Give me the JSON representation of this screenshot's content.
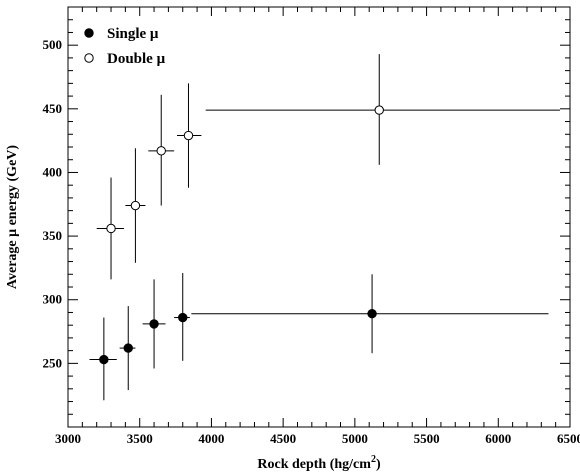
{
  "chart_data": {
    "type": "scatter",
    "xlabel": "Rock depth (hg/cm",
    "xlabel_sup": "2",
    "xlabel_close": ")",
    "ylabel": "Average μ energy (GeV)",
    "xlim": [
      3000,
      6500
    ],
    "ylim": [
      200,
      530
    ],
    "xticks": [
      3000,
      3500,
      4000,
      4500,
      5000,
      5500,
      6000,
      6500
    ],
    "yticks": [
      250,
      300,
      350,
      400,
      450,
      500
    ],
    "grid": false,
    "legend_position": "top-left",
    "series": [
      {
        "name": "Single μ",
        "marker": "filled-circle",
        "color": "#000000",
        "points": [
          {
            "x": 3250,
            "y": 253,
            "xerr": [
              3150,
              3340
            ],
            "yerr": [
              221,
              286
            ]
          },
          {
            "x": 3420,
            "y": 262,
            "xerr": [
              3360,
              3470
            ],
            "yerr": [
              229,
              295
            ]
          },
          {
            "x": 3600,
            "y": 281,
            "xerr": [
              3520,
              3680
            ],
            "yerr": [
              246,
              316
            ]
          },
          {
            "x": 3800,
            "y": 286,
            "xerr": [
              3740,
              3850
            ],
            "yerr": [
              252,
              321
            ]
          },
          {
            "x": 5120,
            "y": 289,
            "xerr": [
              3860,
              6350
            ],
            "yerr": [
              258,
              320
            ]
          }
        ]
      },
      {
        "name": "Double μ",
        "marker": "open-circle",
        "color": "#000000",
        "points": [
          {
            "x": 3300,
            "y": 356,
            "xerr": [
              3200,
              3390
            ],
            "yerr": [
              316,
              396
            ]
          },
          {
            "x": 3470,
            "y": 374,
            "xerr": [
              3400,
              3540
            ],
            "yerr": [
              329,
              419
            ]
          },
          {
            "x": 3650,
            "y": 417,
            "xerr": [
              3560,
              3740
            ],
            "yerr": [
              374,
              461
            ]
          },
          {
            "x": 3840,
            "y": 429,
            "xerr": [
              3760,
              3930
            ],
            "yerr": [
              388,
              470
            ]
          },
          {
            "x": 5170,
            "y": 449,
            "xerr": [
              3960,
              6430
            ],
            "yerr": [
              406,
              493
            ]
          }
        ]
      }
    ]
  }
}
